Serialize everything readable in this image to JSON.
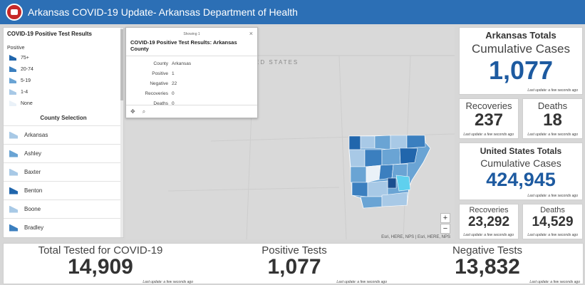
{
  "header": {
    "title": "Arkansas COVID-19 Update- Arkansas Department of Health"
  },
  "legend": {
    "title": "COVID-19 Positive Test Results",
    "subtitle": "Positive",
    "items": [
      {
        "label": "75+",
        "color": "#2166ac"
      },
      {
        "label": "20-74",
        "color": "#3b7fbf"
      },
      {
        "label": "5-19",
        "color": "#6aa4d4"
      },
      {
        "label": "1-4",
        "color": "#a8c9e6"
      },
      {
        "label": "None",
        "color": "#eaf1f8"
      }
    ]
  },
  "counties": {
    "heading": "County Selection",
    "rows": [
      {
        "name": "Arkansas",
        "color": "#a8c9e6"
      },
      {
        "name": "Ashley",
        "color": "#6aa4d4"
      },
      {
        "name": "Baxter",
        "color": "#a8c9e6"
      },
      {
        "name": "Benton",
        "color": "#2166ac"
      },
      {
        "name": "Boone",
        "color": "#a8c9e6"
      },
      {
        "name": "Bradley",
        "color": "#3b7fbf"
      }
    ]
  },
  "map": {
    "label": "ED STATES",
    "attribution": "Esri, HERE, NPS | Esri, HERE, NPS",
    "zoom_in": "+",
    "zoom_out": "−"
  },
  "popup": {
    "showing": "Showing 1",
    "close": "×",
    "title": "COVID-19 Positive Test Results: Arkansas County",
    "fields": [
      {
        "key": "County",
        "value": "Arkansas"
      },
      {
        "key": "Positive",
        "value": "1"
      },
      {
        "key": "Negative",
        "value": "22"
      },
      {
        "key": "Recoveries",
        "value": "0"
      },
      {
        "key": "Deaths",
        "value": "0"
      }
    ]
  },
  "arkansas": {
    "heading": "Arkansas Totals",
    "label": "Cumulative Cases",
    "cases": "1,077",
    "recoveries_label": "Recoveries",
    "recoveries": "237",
    "deaths_label": "Deaths",
    "deaths": "18"
  },
  "us": {
    "heading": "United States Totals",
    "label": "Cumulative Cases",
    "cases": "424,945",
    "recoveries_label": "Recoveries",
    "recoveries": "23,292",
    "deaths_label": "Deaths",
    "deaths": "14,529"
  },
  "bottom": {
    "tested_label": "Total Tested for COVID-19",
    "tested": "14,909",
    "positive_label": "Positive Tests",
    "positive": "1,077",
    "negative_label": "Negative Tests",
    "negative": "13,832"
  },
  "timestamp": "Last update: a few seconds ago",
  "colors": {
    "header": "#2c6fb5",
    "accent": "#1d5aa0"
  }
}
